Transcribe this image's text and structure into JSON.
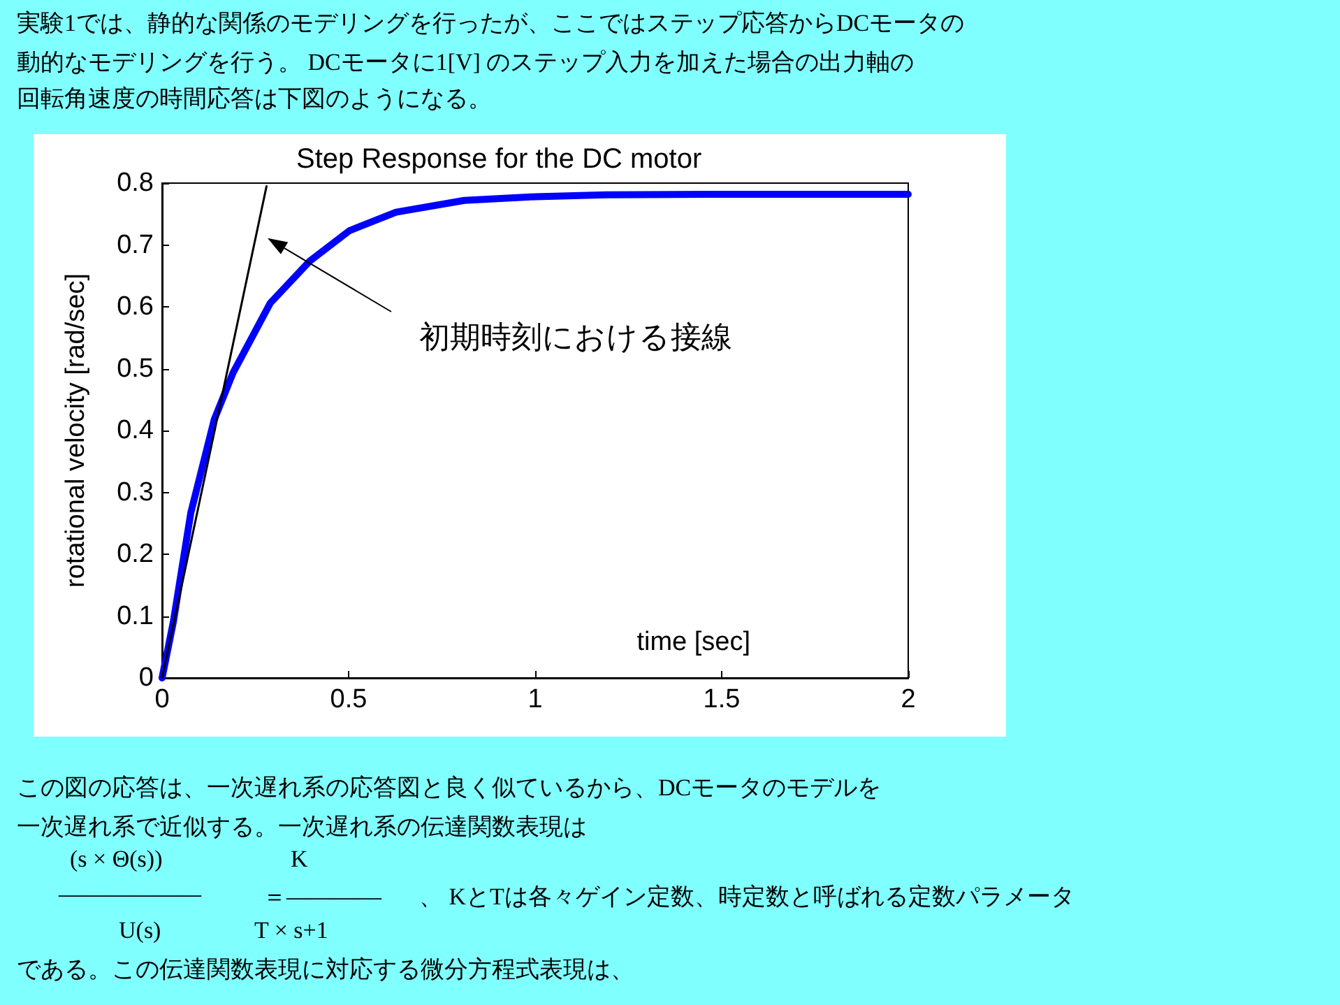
{
  "chart_data": {
    "type": "line",
    "title": "Step Response for the DC motor",
    "xlabel": "time [sec]",
    "ylabel": "rotational velocity [rad/sec]",
    "xlim": [
      0,
      2
    ],
    "xticks": [
      0,
      0.5,
      1,
      1.5,
      2
    ],
    "ylim": [
      0,
      0.8
    ],
    "yticks": [
      0,
      0.1,
      0.2,
      0.3,
      0.4,
      0.5,
      0.6,
      0.7,
      0.8
    ],
    "grid": false,
    "marker": "none",
    "line_style": "solid",
    "series": [
      {
        "color": "#0000ff",
        "x": [
          0,
          0.03,
          0.077,
          0.14,
          0.19,
          0.29,
          0.396,
          0.502,
          0.627,
          0.81,
          1.0,
          1.19,
          1.5,
          2
        ],
        "values": [
          0,
          0.09,
          0.267,
          0.418,
          0.493,
          0.606,
          0.674,
          0.723,
          0.753,
          0.772,
          0.778,
          0.781,
          0.782,
          0.782
        ]
      },
      {
        "type": "line",
        "color": "#000000",
        "x": [
          0,
          0.28
        ],
        "values": [
          0,
          0.795
        ]
      }
    ],
    "annotations": [
      "実験1では、静的な関係のモデリングを行ったが、ここではステップ応答からDCモータの",
      "動的なモデリングを行う。 DCモータに1[V] のステップ入力を加えた場合の出力軸の",
      "回転角速度の時間応答は下図のようになる。",
      "初期時刻における接線",
      "この図の応答は、一次遅れ系の応答図と良く似ているから、DCモータのモデルを",
      "一次遅れ系で近似する。一次遅れ系の伝達関数表現は",
      "(s × Θ(s))",
      "K",
      "——————",
      "＝————",
      "、 KとTは各々ゲイン定数、時定数と呼ばれる定数パラメータ",
      "U(s)",
      "T × s+1",
      "である。この伝達関数表現に対応する微分方程式表現は、"
    ]
  }
}
